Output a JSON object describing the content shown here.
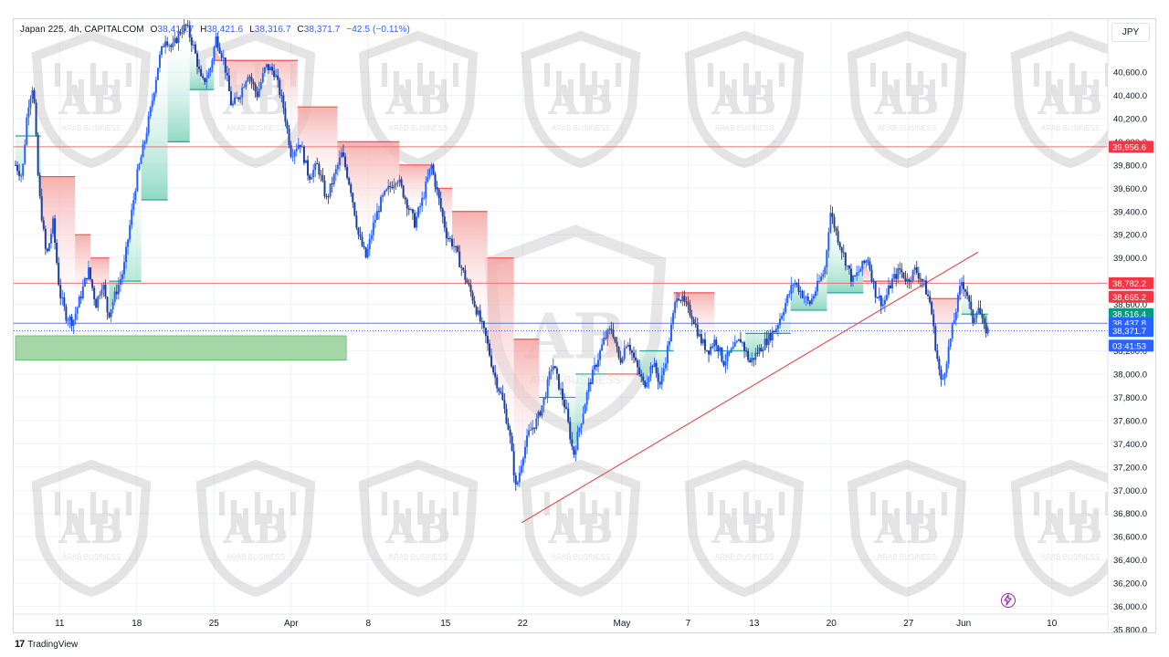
{
  "header": {
    "symbol": "Japan 225, 4h, CAPITALCOM",
    "o_label": "O",
    "o_value": "38,416.7",
    "h_label": "H",
    "h_value": "38,421.6",
    "l_label": "L",
    "l_value": "38,316.7",
    "c_label": "C",
    "c_value": "38,371.7",
    "change": "−42.5 (−0.11%)"
  },
  "currency": "JPY",
  "brand": {
    "logo": "17",
    "name": "TradingView"
  },
  "watermark": {
    "text": "ARAB BUSINESS",
    "letters": "AB"
  },
  "chart_data": {
    "type": "candlestick",
    "title": "Japan 225, 4h, CAPITALCOM",
    "y_axis": {
      "min": 35700,
      "max": 40800,
      "ticks": [
        40600,
        40400,
        40200,
        40000,
        39800,
        39600,
        39400,
        39200,
        39000,
        38800,
        38600,
        38400,
        38200,
        38000,
        37800,
        37600,
        37400,
        37200,
        37000,
        36800,
        36600,
        36400,
        36200,
        36000,
        35800
      ],
      "tick_labels": [
        "40,600.0",
        "40,400.0",
        "40,200.0",
        "40,000.0",
        "39,800.0",
        "39,600.0",
        "39,400.0",
        "39,200.0",
        "39,000.0",
        "38,800.0",
        "38,600.0",
        "38,400.0",
        "38,200.0",
        "38,000.0",
        "37,800.0",
        "37,600.0",
        "37,400.0",
        "37,200.0",
        "37,000.0",
        "36,800.0",
        "36,600.0",
        "36,400.0",
        "36,200.0",
        "36,000.0",
        "35,800.0"
      ]
    },
    "x_axis": {
      "labels": [
        {
          "text": "11",
          "day": 11
        },
        {
          "text": "18",
          "day": 18
        },
        {
          "text": "25",
          "day": 25
        },
        {
          "text": "Apr",
          "day": 32
        },
        {
          "text": "8",
          "day": 39
        },
        {
          "text": "15",
          "day": 46
        },
        {
          "text": "22",
          "day": 53
        },
        {
          "text": "May",
          "day": 62
        },
        {
          "text": "7",
          "day": 68
        },
        {
          "text": "13",
          "day": 74
        },
        {
          "text": "20",
          "day": 81
        },
        {
          "text": "27",
          "day": 88
        },
        {
          "text": "Jun",
          "day": 93
        },
        {
          "text": "10",
          "day": 101
        }
      ],
      "min_day": 7.0,
      "max_day": 103.5
    },
    "price_path": [
      [
        7.0,
        39800
      ],
      [
        7.6,
        39700
      ],
      [
        8.1,
        40300
      ],
      [
        8.6,
        40500
      ],
      [
        9.1,
        39600
      ],
      [
        9.8,
        39000
      ],
      [
        10.4,
        39300
      ],
      [
        11.0,
        38700
      ],
      [
        11.6,
        38500
      ],
      [
        12.2,
        38450
      ],
      [
        13.0,
        38700
      ],
      [
        13.6,
        38900
      ],
      [
        14.3,
        38600
      ],
      [
        14.9,
        38800
      ],
      [
        15.4,
        38500
      ],
      [
        16.1,
        38700
      ],
      [
        16.8,
        38900
      ],
      [
        17.4,
        39300
      ],
      [
        18.0,
        39700
      ],
      [
        18.7,
        40000
      ],
      [
        19.3,
        40300
      ],
      [
        20.0,
        40700
      ],
      [
        20.6,
        40900
      ],
      [
        21.2,
        40800
      ],
      [
        21.9,
        40950
      ],
      [
        22.5,
        41000
      ],
      [
        23.2,
        40800
      ],
      [
        23.9,
        40500
      ],
      [
        24.6,
        40600
      ],
      [
        25.2,
        40900
      ],
      [
        25.9,
        40700
      ],
      [
        26.6,
        40300
      ],
      [
        27.3,
        40400
      ],
      [
        28.1,
        40600
      ],
      [
        28.9,
        40400
      ],
      [
        29.7,
        40650
      ],
      [
        30.5,
        40600
      ],
      [
        31.3,
        40300
      ],
      [
        32.0,
        39900
      ],
      [
        32.8,
        40000
      ],
      [
        33.6,
        39700
      ],
      [
        34.4,
        39800
      ],
      [
        35.2,
        39500
      ],
      [
        35.9,
        39700
      ],
      [
        36.6,
        39900
      ],
      [
        37.4,
        39600
      ],
      [
        38.1,
        39200
      ],
      [
        38.8,
        39000
      ],
      [
        39.5,
        39300
      ],
      [
        40.2,
        39500
      ],
      [
        40.9,
        39600
      ],
      [
        41.6,
        39700
      ],
      [
        42.4,
        39500
      ],
      [
        43.2,
        39300
      ],
      [
        43.9,
        39500
      ],
      [
        44.7,
        39800
      ],
      [
        45.4,
        39500
      ],
      [
        46.1,
        39200
      ],
      [
        46.8,
        39100
      ],
      [
        47.5,
        38900
      ],
      [
        48.3,
        38700
      ],
      [
        49.0,
        38500
      ],
      [
        49.7,
        38300
      ],
      [
        50.4,
        38000
      ],
      [
        51.1,
        37800
      ],
      [
        51.8,
        37500
      ],
      [
        52.4,
        37000
      ],
      [
        53.0,
        37300
      ],
      [
        53.6,
        37500
      ],
      [
        54.3,
        37600
      ],
      [
        55.0,
        37800
      ],
      [
        55.7,
        38100
      ],
      [
        56.3,
        37900
      ],
      [
        56.9,
        37700
      ],
      [
        57.6,
        37300
      ],
      [
        58.3,
        37600
      ],
      [
        59.0,
        37900
      ],
      [
        59.7,
        38100
      ],
      [
        60.4,
        38300
      ],
      [
        61.1,
        38400
      ],
      [
        61.8,
        38100
      ],
      [
        62.5,
        38300
      ],
      [
        63.2,
        38100
      ],
      [
        64.0,
        37900
      ],
      [
        64.8,
        38100
      ],
      [
        65.5,
        37900
      ],
      [
        66.3,
        38300
      ],
      [
        67.0,
        38700
      ],
      [
        67.7,
        38600
      ],
      [
        68.4,
        38500
      ],
      [
        69.1,
        38300
      ],
      [
        69.8,
        38200
      ],
      [
        70.5,
        38300
      ],
      [
        71.2,
        38100
      ],
      [
        72.0,
        38200
      ],
      [
        72.8,
        38300
      ],
      [
        73.6,
        38100
      ],
      [
        74.4,
        38200
      ],
      [
        75.2,
        38300
      ],
      [
        76.0,
        38400
      ],
      [
        76.8,
        38600
      ],
      [
        77.6,
        38800
      ],
      [
        78.3,
        38700
      ],
      [
        79.0,
        38600
      ],
      [
        79.7,
        38750
      ],
      [
        80.4,
        38900
      ],
      [
        80.9,
        39400
      ],
      [
        81.5,
        39200
      ],
      [
        82.2,
        39000
      ],
      [
        82.9,
        38800
      ],
      [
        83.6,
        38900
      ],
      [
        84.3,
        39000
      ],
      [
        85.0,
        38700
      ],
      [
        85.7,
        38600
      ],
      [
        86.5,
        38800
      ],
      [
        87.2,
        38900
      ],
      [
        87.9,
        38800
      ],
      [
        88.6,
        38900
      ],
      [
        89.3,
        38800
      ],
      [
        90.0,
        38600
      ],
      [
        90.5,
        38200
      ],
      [
        91.0,
        37900
      ],
      [
        91.6,
        38200
      ],
      [
        92.2,
        38500
      ],
      [
        92.8,
        38800
      ],
      [
        93.3,
        38700
      ],
      [
        93.8,
        38450
      ],
      [
        94.3,
        38600
      ],
      [
        94.8,
        38400
      ],
      [
        95.2,
        38372
      ]
    ],
    "supertrend_segments": [
      {
        "from": 7.0,
        "to": 9.3,
        "level": 40050,
        "trend": "up"
      },
      {
        "from": 9.3,
        "to": 12.4,
        "level": 39700,
        "trend": "down"
      },
      {
        "from": 12.4,
        "to": 13.8,
        "level": 39200,
        "trend": "down"
      },
      {
        "from": 13.8,
        "to": 15.5,
        "level": 39000,
        "trend": "down"
      },
      {
        "from": 15.5,
        "to": 18.4,
        "level": 38800,
        "trend": "up"
      },
      {
        "from": 18.4,
        "to": 20.8,
        "level": 39500,
        "trend": "up"
      },
      {
        "from": 20.8,
        "to": 22.8,
        "level": 40000,
        "trend": "up"
      },
      {
        "from": 22.8,
        "to": 25.0,
        "level": 40450,
        "trend": "up"
      },
      {
        "from": 25.0,
        "to": 32.6,
        "level": 40700,
        "trend": "down"
      },
      {
        "from": 32.6,
        "to": 36.2,
        "level": 40300,
        "trend": "down"
      },
      {
        "from": 36.2,
        "to": 41.8,
        "level": 40000,
        "trend": "down"
      },
      {
        "from": 41.8,
        "to": 45.0,
        "level": 39800,
        "trend": "down"
      },
      {
        "from": 45.0,
        "to": 46.6,
        "level": 39600,
        "trend": "down"
      },
      {
        "from": 46.6,
        "to": 49.8,
        "level": 39400,
        "trend": "down"
      },
      {
        "from": 49.8,
        "to": 52.2,
        "level": 39000,
        "trend": "down"
      },
      {
        "from": 52.2,
        "to": 54.5,
        "level": 38300,
        "trend": "down"
      },
      {
        "from": 54.5,
        "to": 57.8,
        "level": 37800,
        "trend": "up"
      },
      {
        "from": 57.8,
        "to": 60.6,
        "level": 38000,
        "trend": "up"
      },
      {
        "from": 60.6,
        "to": 63.6,
        "level": 38000,
        "trend": "down"
      },
      {
        "from": 63.6,
        "to": 66.7,
        "level": 38200,
        "trend": "up"
      },
      {
        "from": 66.7,
        "to": 70.4,
        "level": 38700,
        "trend": "down"
      },
      {
        "from": 70.4,
        "to": 73.2,
        "level": 38200,
        "trend": "up"
      },
      {
        "from": 73.2,
        "to": 77.3,
        "level": 38350,
        "trend": "up"
      },
      {
        "from": 77.3,
        "to": 80.6,
        "level": 38550,
        "trend": "up"
      },
      {
        "from": 80.6,
        "to": 83.9,
        "level": 38700,
        "trend": "up"
      },
      {
        "from": 83.9,
        "to": 89.7,
        "level": 38800,
        "trend": "down"
      },
      {
        "from": 89.7,
        "to": 92.8,
        "level": 38650,
        "trend": "down"
      },
      {
        "from": 92.8,
        "to": 95.2,
        "level": 38516,
        "trend": "up"
      }
    ],
    "horizontal_lines": [
      {
        "price": 39956.6,
        "color": "#e57373"
      },
      {
        "price": 38782.2,
        "color": "#e57373"
      },
      {
        "price": 38437.8,
        "color": "#5b7fd6"
      }
    ],
    "trendline": {
      "from": [
        52.9,
        36720
      ],
      "to": [
        94.3,
        39050
      ],
      "color": "#e05555"
    },
    "zone": {
      "from": 7.0,
      "to": 37.0,
      "top": 38330,
      "bottom": 38120,
      "color": "#a5d6a7"
    },
    "price_labels": [
      {
        "text": "39,956.6",
        "price": 39956.6,
        "bg": "#f23645",
        "color": "#ffffff"
      },
      {
        "text": "38,782.2",
        "price": 38782.2,
        "bg": "#f23645",
        "color": "#ffffff"
      },
      {
        "text": "38,665.2",
        "price": 38665.2,
        "bg": "#f23645",
        "color": "#ffffff"
      },
      {
        "text": "38,516.4",
        "price": 38516.4,
        "bg": "#089981",
        "color": "#ffffff"
      },
      {
        "text": "38,437.8",
        "price": 38437.8,
        "bg": "#2962ff",
        "color": "#ffffff"
      },
      {
        "text": "38,371.7",
        "price": 38371.7,
        "bg": "#2962ff",
        "color": "#ffffff"
      },
      {
        "text": "03:41:53",
        "price": 38245,
        "bg": "#2962ff",
        "color": "#ffffff"
      }
    ],
    "colors": {
      "candle_up": "#2962ff",
      "candle_down": "#1e3f99",
      "supertrend_up": "#26a69a",
      "supertrend_down": "#ef5350",
      "fill_up": "#b2dfdb",
      "fill_down": "#ffcdd2",
      "grid": "#f0f3fa",
      "axis_text": "#131722"
    }
  }
}
